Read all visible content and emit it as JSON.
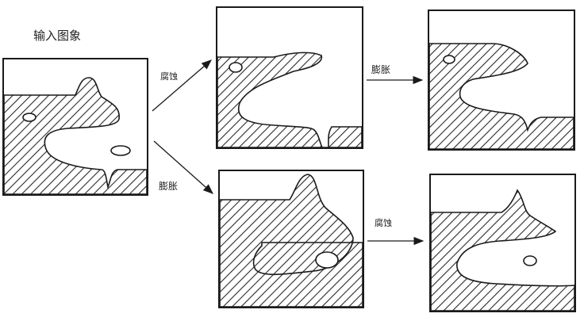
{
  "title": "输入图象",
  "ops": {
    "erode": "腐蚀",
    "dilate": "膨胀"
  },
  "edges": [
    {
      "label": "腐蚀"
    },
    {
      "label": "膨胀"
    },
    {
      "label": "膨胀"
    },
    {
      "label": "腐蚀"
    }
  ],
  "colors": {
    "stroke": "#1a1a1a",
    "hatch": "#2a2a2a",
    "background": "#ffffff"
  }
}
